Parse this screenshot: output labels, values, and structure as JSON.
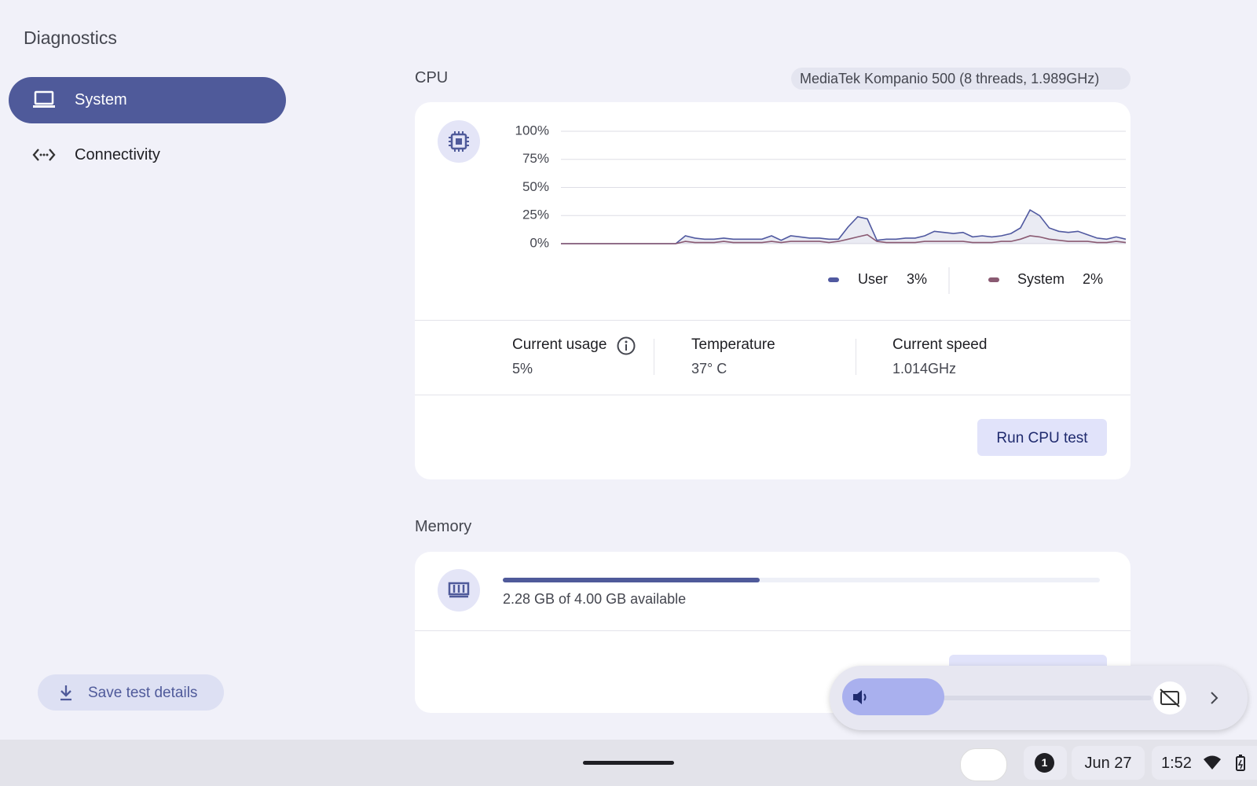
{
  "app": {
    "title": "Diagnostics"
  },
  "nav": [
    {
      "label": "System"
    },
    {
      "label": "Connectivity"
    }
  ],
  "save_button": "Save test details",
  "cpu": {
    "heading": "CPU",
    "model": "MediaTek Kompanio 500 (8 threads, 1.989GHz)",
    "chart": {
      "type": "line",
      "ylim": [
        0,
        100
      ],
      "yticks": [
        {
          "value": 0,
          "label": "0%"
        },
        {
          "value": 25,
          "label": "25%"
        },
        {
          "value": 50,
          "label": "50%"
        },
        {
          "value": 75,
          "label": "75%"
        },
        {
          "value": 100,
          "label": "100%"
        }
      ],
      "grid": true,
      "series": [
        {
          "name": "User",
          "legend_value": "3%",
          "color": "#5059a0",
          "values": [
            0,
            0,
            0,
            0,
            0,
            0,
            0,
            0,
            0,
            0,
            0,
            0,
            0,
            7,
            5,
            4,
            4,
            5,
            4,
            4,
            4,
            4,
            7,
            3,
            7,
            6,
            5,
            5,
            4,
            4,
            15,
            24,
            22,
            3,
            4,
            4,
            5,
            5,
            7,
            11,
            10,
            9,
            10,
            6,
            7,
            6,
            7,
            9,
            14,
            30,
            25,
            14,
            11,
            10,
            11,
            8,
            5,
            4,
            6,
            4
          ]
        },
        {
          "name": "System",
          "legend_value": "2%",
          "color": "#8a5a72",
          "values": [
            0,
            0,
            0,
            0,
            0,
            0,
            0,
            0,
            0,
            0,
            0,
            0,
            0,
            2,
            1,
            1,
            1,
            2,
            1,
            1,
            1,
            1,
            2,
            1,
            2,
            2,
            2,
            2,
            1,
            2,
            4,
            6,
            8,
            2,
            1,
            1,
            1,
            1,
            2,
            2,
            2,
            2,
            2,
            1,
            1,
            1,
            2,
            2,
            4,
            7,
            6,
            4,
            3,
            2,
            2,
            2,
            1,
            1,
            2,
            1
          ]
        }
      ]
    },
    "stats": [
      {
        "label": "Current usage",
        "value": "5%"
      },
      {
        "label": "Temperature",
        "value": "37° C"
      },
      {
        "label": "Current speed",
        "value": "1.014GHz"
      }
    ],
    "button": "Run CPU test"
  },
  "memory": {
    "heading": "Memory",
    "available_text": "2.28 GB of 4.00 GB available",
    "usage_bar": {
      "value": 1.72,
      "max": 4.0
    }
  },
  "taskbar": {
    "notifications": "1",
    "date": "Jun 27",
    "time": "1:52"
  }
}
